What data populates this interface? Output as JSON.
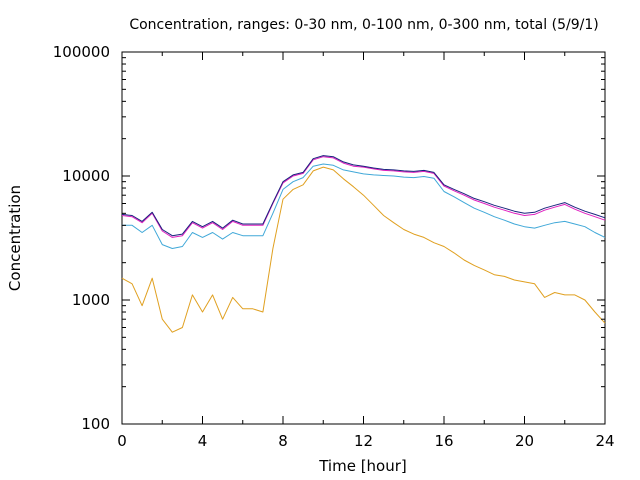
{
  "chart_data": {
    "type": "line",
    "title": "Concentration, ranges: 0-30 nm, 0-100 nm, 0-300 nm, total (5/9/1)",
    "xlabel": "Time [hour]",
    "ylabel": "Concentration",
    "xlim": [
      0,
      24
    ],
    "ylim": [
      100,
      100000
    ],
    "yscale": "log",
    "x_ticks": [
      "0",
      "4",
      "8",
      "12",
      "16",
      "20",
      "24"
    ],
    "y_ticks": [
      "100",
      "1000",
      "10000",
      "100000"
    ],
    "grid": false,
    "legend": "none",
    "x": [
      0,
      0.5,
      1,
      1.5,
      2,
      2.5,
      3,
      3.5,
      4,
      4.5,
      5,
      5.5,
      6,
      6.5,
      7,
      7.5,
      8,
      8.5,
      9,
      9.5,
      10,
      10.5,
      11,
      11.5,
      12,
      12.5,
      13,
      13.5,
      14,
      14.5,
      15,
      15.5,
      16,
      16.5,
      17,
      17.5,
      18,
      18.5,
      19,
      19.5,
      20,
      20.5,
      21,
      21.5,
      22,
      22.5,
      23,
      23.5,
      24
    ],
    "series": [
      {
        "color": "#e0a020",
        "values": [
          1500,
          1350,
          900,
          1500,
          700,
          550,
          600,
          1100,
          800,
          1100,
          700,
          1050,
          850,
          850,
          800,
          2600,
          6500,
          7800,
          8500,
          11000,
          11800,
          11200,
          9500,
          8200,
          7000,
          5800,
          4800,
          4200,
          3700,
          3400,
          3200,
          2900,
          2700,
          2400,
          2100,
          1900,
          1750,
          1600,
          1550,
          1450,
          1400,
          1350,
          1050,
          1150,
          1100,
          1100,
          1000,
          800,
          650
        ]
      },
      {
        "color": "#40a8d8",
        "values": [
          4000,
          4000,
          3500,
          4000,
          2800,
          2600,
          2700,
          3500,
          3200,
          3500,
          3100,
          3500,
          3300,
          3300,
          3300,
          5000,
          7800,
          9000,
          9700,
          12000,
          12500,
          12200,
          11200,
          10800,
          10400,
          10200,
          10100,
          10000,
          9800,
          9700,
          9900,
          9600,
          7500,
          6800,
          6100,
          5500,
          5100,
          4700,
          4400,
          4100,
          3900,
          3800,
          4000,
          4200,
          4300,
          4100,
          3900,
          3500,
          3200
        ]
      },
      {
        "color": "#e020c0",
        "values": [
          4800,
          4700,
          4200,
          5000,
          3600,
          3200,
          3300,
          4200,
          3800,
          4200,
          3700,
          4300,
          4000,
          4000,
          4000,
          6000,
          8800,
          10000,
          10500,
          13500,
          14300,
          14000,
          12700,
          12000,
          11800,
          11400,
          11100,
          11000,
          10800,
          10700,
          10900,
          10500,
          8300,
          7600,
          7000,
          6400,
          6000,
          5600,
          5300,
          5000,
          4800,
          4900,
          5300,
          5600,
          5900,
          5400,
          5000,
          4700,
          4400
        ]
      },
      {
        "color": "#1a237e",
        "values": [
          4900,
          4800,
          4300,
          5100,
          3700,
          3300,
          3400,
          4300,
          3900,
          4300,
          3800,
          4400,
          4100,
          4100,
          4100,
          6100,
          9000,
          10200,
          10700,
          13800,
          14600,
          14300,
          13000,
          12300,
          12000,
          11600,
          11300,
          11200,
          11000,
          10900,
          11100,
          10700,
          8500,
          7800,
          7200,
          6600,
          6200,
          5800,
          5500,
          5200,
          5000,
          5100,
          5500,
          5800,
          6100,
          5600,
          5200,
          4900,
          4600
        ]
      }
    ]
  }
}
